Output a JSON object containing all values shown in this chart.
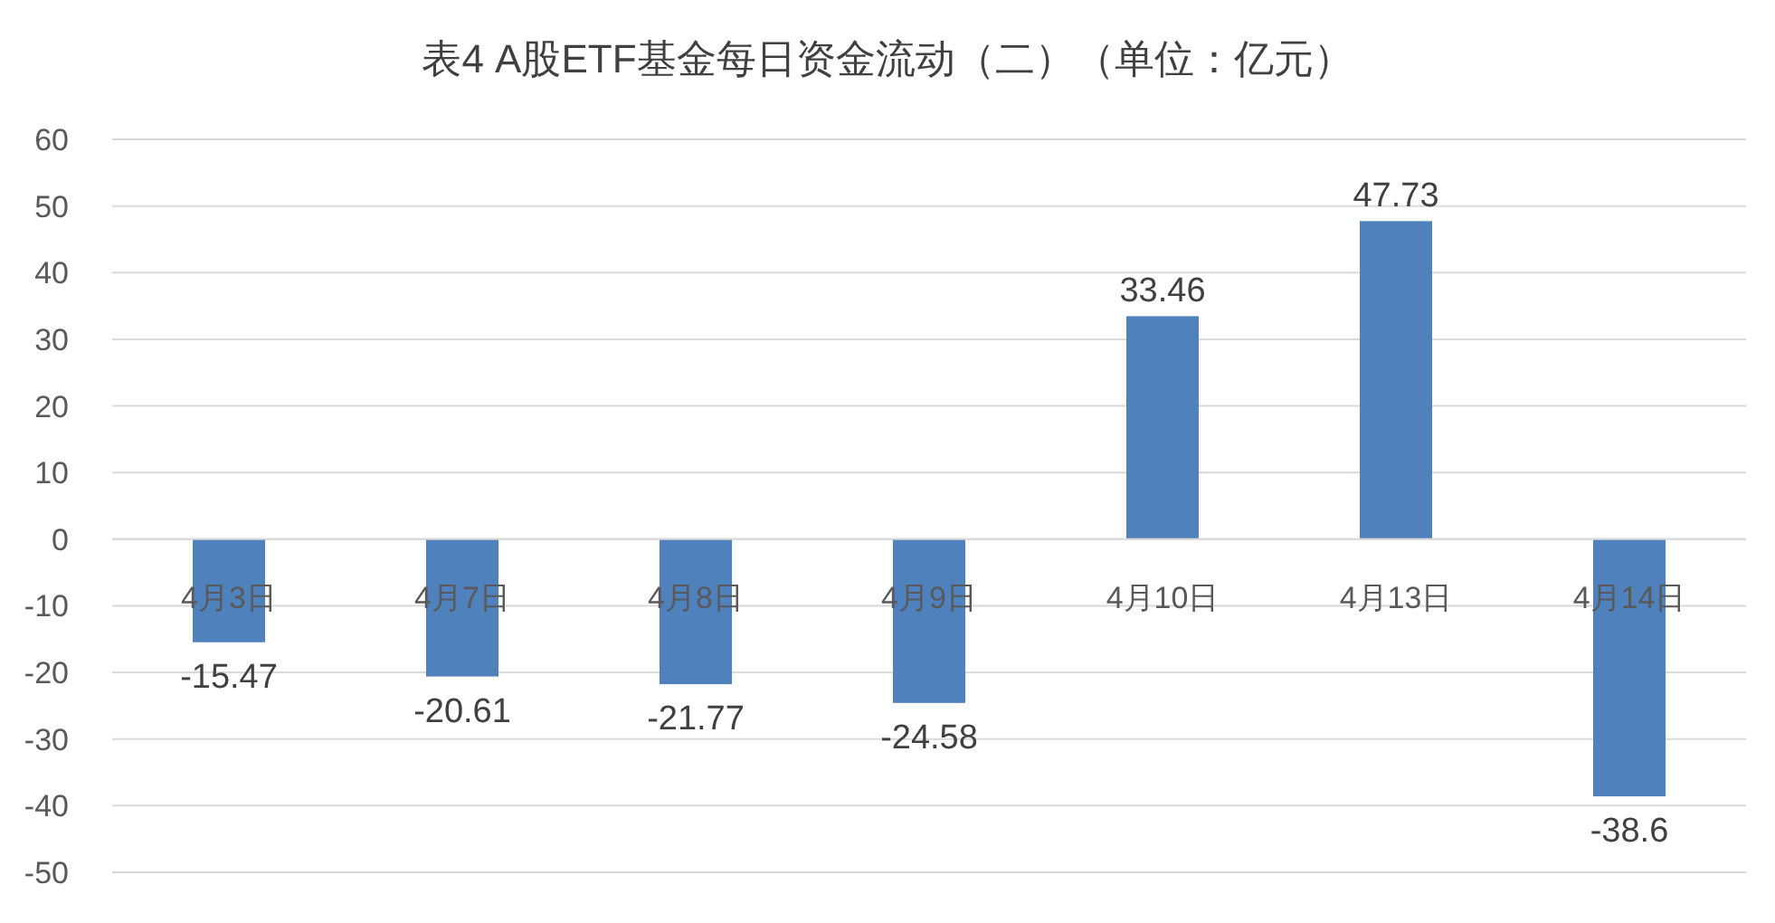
{
  "chart_data": {
    "type": "bar",
    "title": "表4  A股ETF基金每日资金流动（二）（单位：亿元）",
    "categories": [
      "4月3日",
      "4月7日",
      "4月8日",
      "4月9日",
      "4月10日",
      "4月13日",
      "4月14日"
    ],
    "values": [
      -15.47,
      -20.61,
      -21.77,
      -24.58,
      33.46,
      47.73,
      -38.6
    ],
    "color": "#4f81bd",
    "ylim": [
      -50,
      60
    ],
    "yticks": [
      -50,
      -40,
      -30,
      -20,
      -10,
      0,
      10,
      20,
      30,
      40,
      50,
      60
    ],
    "grid": "y",
    "data_labels": true
  }
}
